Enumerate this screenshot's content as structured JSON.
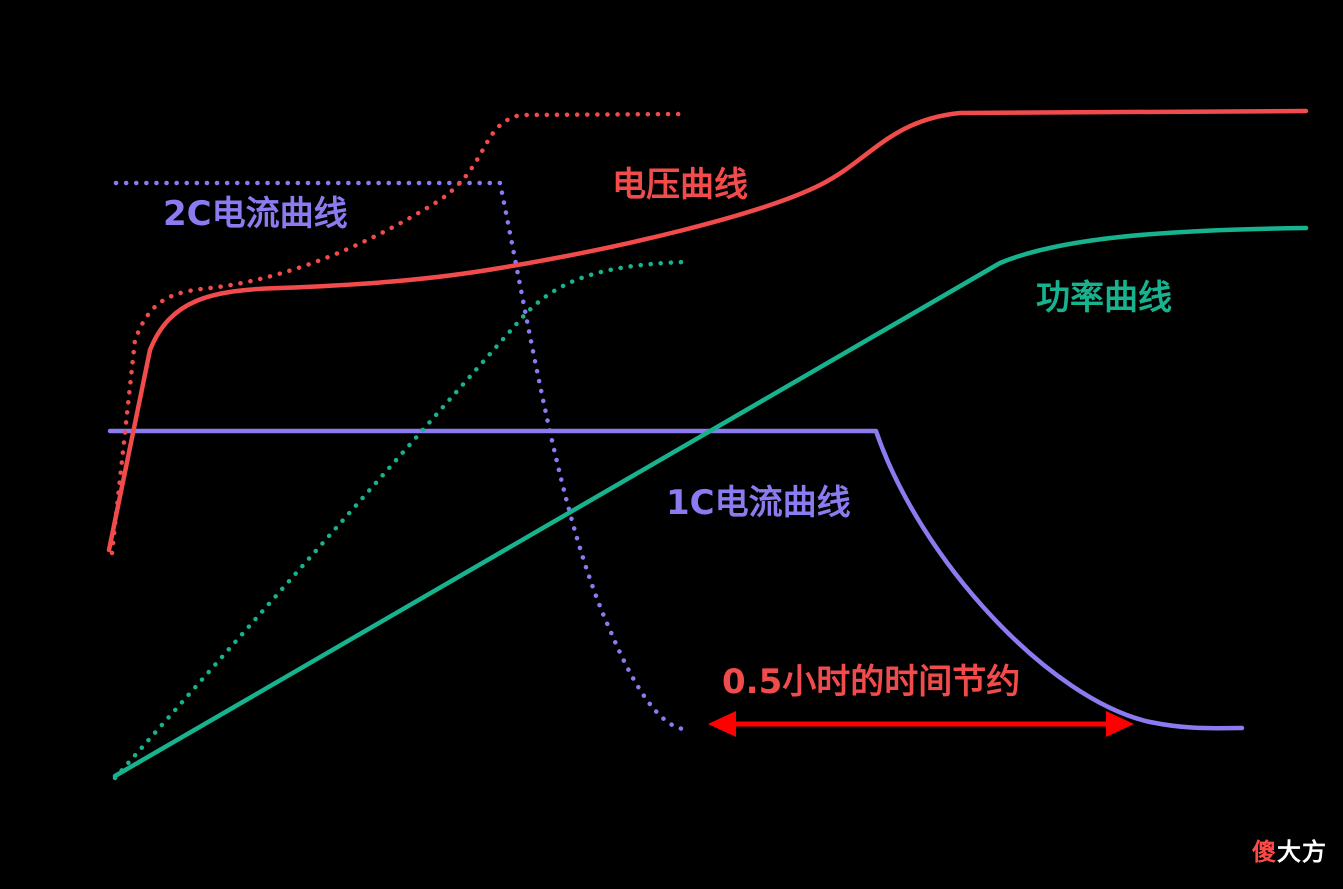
{
  "labels": {
    "current_2c": "2C电流曲线",
    "voltage": "电压曲线",
    "power": "功率曲线",
    "current_1c": "1C电流曲线",
    "time_saved": "0.5小时的时间节约"
  },
  "watermark": {
    "first": "傻",
    "rest": "大方"
  },
  "colors": {
    "background": "#000000",
    "voltage": "#f24b4b",
    "current": "#8a7cf0",
    "power": "#17b38f",
    "arrow": "#ff0000"
  },
  "legend_style": {
    "dotted": "2C charging",
    "solid": "1C charging"
  }
}
